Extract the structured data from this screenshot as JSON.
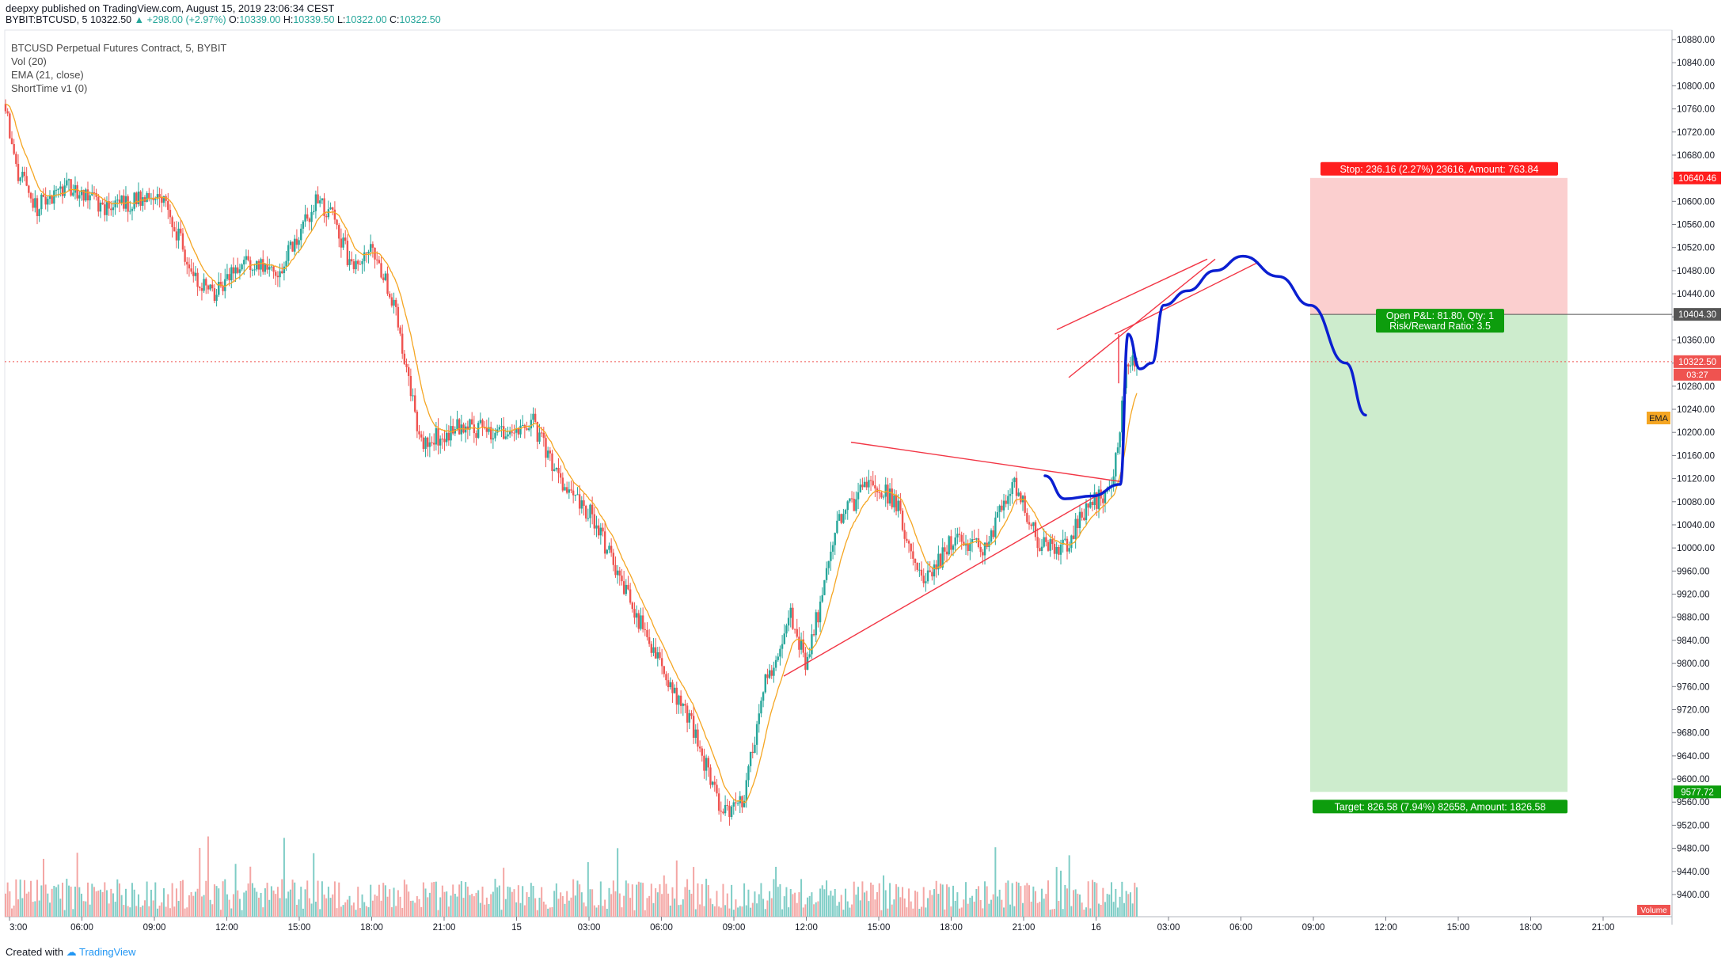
{
  "header": {
    "author": "deepxy",
    "published": "published on TradingView.com, August 15, 2019 23:06:34 CEST",
    "symbol": "BYBIT:BTCUSD, 5",
    "last": "10322.50",
    "change": "▲ +298.00 (+2.97%)",
    "o_label": "O:",
    "o": "10339.00",
    "h_label": "H:",
    "h": "10339.50",
    "l_label": "L:",
    "l": "10322.00",
    "c_label": "C:",
    "c": "10322.50"
  },
  "legend": {
    "title": "BTCUSD Perpetual Futures Contract, 5, BYBIT",
    "vol": "Vol (20)",
    "ema": "EMA (21, close)",
    "shorttime": "ShortTime v1 (0)"
  },
  "footer": {
    "created_with": "Created with",
    "brand": "TradingView"
  },
  "colors": {
    "up": "#26a69a",
    "down": "#ef5350",
    "up_vol": "#7fcdc6",
    "down_vol": "#f4a6a4",
    "ema": "#f5a623",
    "trend": "#f23645",
    "projection": "#0b1fd1",
    "stop_zone": "#fbcfcf",
    "target_zone": "#cdeccd"
  },
  "chart_data": {
    "type": "candlestick",
    "ylim": [
      9360,
      10900
    ],
    "y_ticks": [
      "10880.00",
      "10840.00",
      "10800.00",
      "10760.00",
      "10720.00",
      "10680.00",
      "10640.00",
      "10600.00",
      "10560.00",
      "10520.00",
      "10480.00",
      "10440.00",
      "10400.00",
      "10360.00",
      "10320.00",
      "10280.00",
      "10240.00",
      "10200.00",
      "10160.00",
      "10120.00",
      "10080.00",
      "10040.00",
      "10000.00",
      "9960.00",
      "9920.00",
      "9880.00",
      "9840.00",
      "9800.00",
      "9760.00",
      "9720.00",
      "9680.00",
      "9640.00",
      "9600.00",
      "9560.00",
      "9520.00",
      "9480.00",
      "9440.00",
      "9400.00"
    ],
    "x_ticks": [
      "3:00",
      "06:00",
      "09:00",
      "12:00",
      "15:00",
      "18:00",
      "21:00",
      "15",
      "03:00",
      "06:00",
      "09:00",
      "12:00",
      "15:00",
      "18:00",
      "21:00",
      "16",
      "03:00",
      "06:00",
      "09:00",
      "12:00",
      "15:00",
      "18:00",
      "21:00"
    ],
    "anchors": [
      {
        "t": 0,
        "p": 10785
      },
      {
        "t": 10,
        "p": 10660
      },
      {
        "t": 30,
        "p": 10590
      },
      {
        "t": 60,
        "p": 10625
      },
      {
        "t": 95,
        "p": 10590
      },
      {
        "t": 120,
        "p": 10600
      },
      {
        "t": 150,
        "p": 10610
      },
      {
        "t": 180,
        "p": 10470
      },
      {
        "t": 200,
        "p": 10440
      },
      {
        "t": 230,
        "p": 10500
      },
      {
        "t": 260,
        "p": 10480
      },
      {
        "t": 295,
        "p": 10600
      },
      {
        "t": 310,
        "p": 10580
      },
      {
        "t": 330,
        "p": 10480
      },
      {
        "t": 350,
        "p": 10520
      },
      {
        "t": 370,
        "p": 10420
      },
      {
        "t": 395,
        "p": 10180
      },
      {
        "t": 430,
        "p": 10210
      },
      {
        "t": 470,
        "p": 10200
      },
      {
        "t": 500,
        "p": 10220
      },
      {
        "t": 530,
        "p": 10100
      },
      {
        "t": 555,
        "p": 10060
      },
      {
        "t": 590,
        "p": 9920
      },
      {
        "t": 620,
        "p": 9800
      },
      {
        "t": 650,
        "p": 9700
      },
      {
        "t": 680,
        "p": 9540
      },
      {
        "t": 700,
        "p": 9560
      },
      {
        "t": 720,
        "p": 9760
      },
      {
        "t": 745,
        "p": 9880
      },
      {
        "t": 760,
        "p": 9800
      },
      {
        "t": 790,
        "p": 10040
      },
      {
        "t": 820,
        "p": 10120
      },
      {
        "t": 845,
        "p": 10080
      },
      {
        "t": 870,
        "p": 9930
      },
      {
        "t": 900,
        "p": 10020
      },
      {
        "t": 930,
        "p": 10000
      },
      {
        "t": 955,
        "p": 10120
      },
      {
        "t": 980,
        "p": 10010
      },
      {
        "t": 1005,
        "p": 10000
      },
      {
        "t": 1020,
        "p": 10060
      },
      {
        "t": 1040,
        "p": 10090
      },
      {
        "t": 1050,
        "p": 10120
      },
      {
        "t": 1058,
        "p": 10220
      },
      {
        "t": 1064,
        "p": 10330
      },
      {
        "t": 1072,
        "p": 10322.5
      }
    ],
    "ema": {
      "label": "EMA",
      "period": 21
    },
    "last_price": {
      "value": 10322.5,
      "label": "10322.50",
      "countdown": "03:27"
    },
    "position": {
      "entry": {
        "value": 10404.3,
        "label": "10404.30"
      },
      "stop": {
        "value": 10640.46,
        "label": "10640.46",
        "text": "Stop: 236.16 (2.27%) 23616, Amount: 763.84"
      },
      "target": {
        "value": 9577.72,
        "label": "9577.72",
        "text": "Target: 826.58 (7.94%) 82658, Amount: 1826.58"
      },
      "pnl_text": "Open P&L: 81.80, Qty: 1",
      "rr_text": "Risk/Reward Ratio: 3.5"
    },
    "volume_label": "Volume"
  }
}
